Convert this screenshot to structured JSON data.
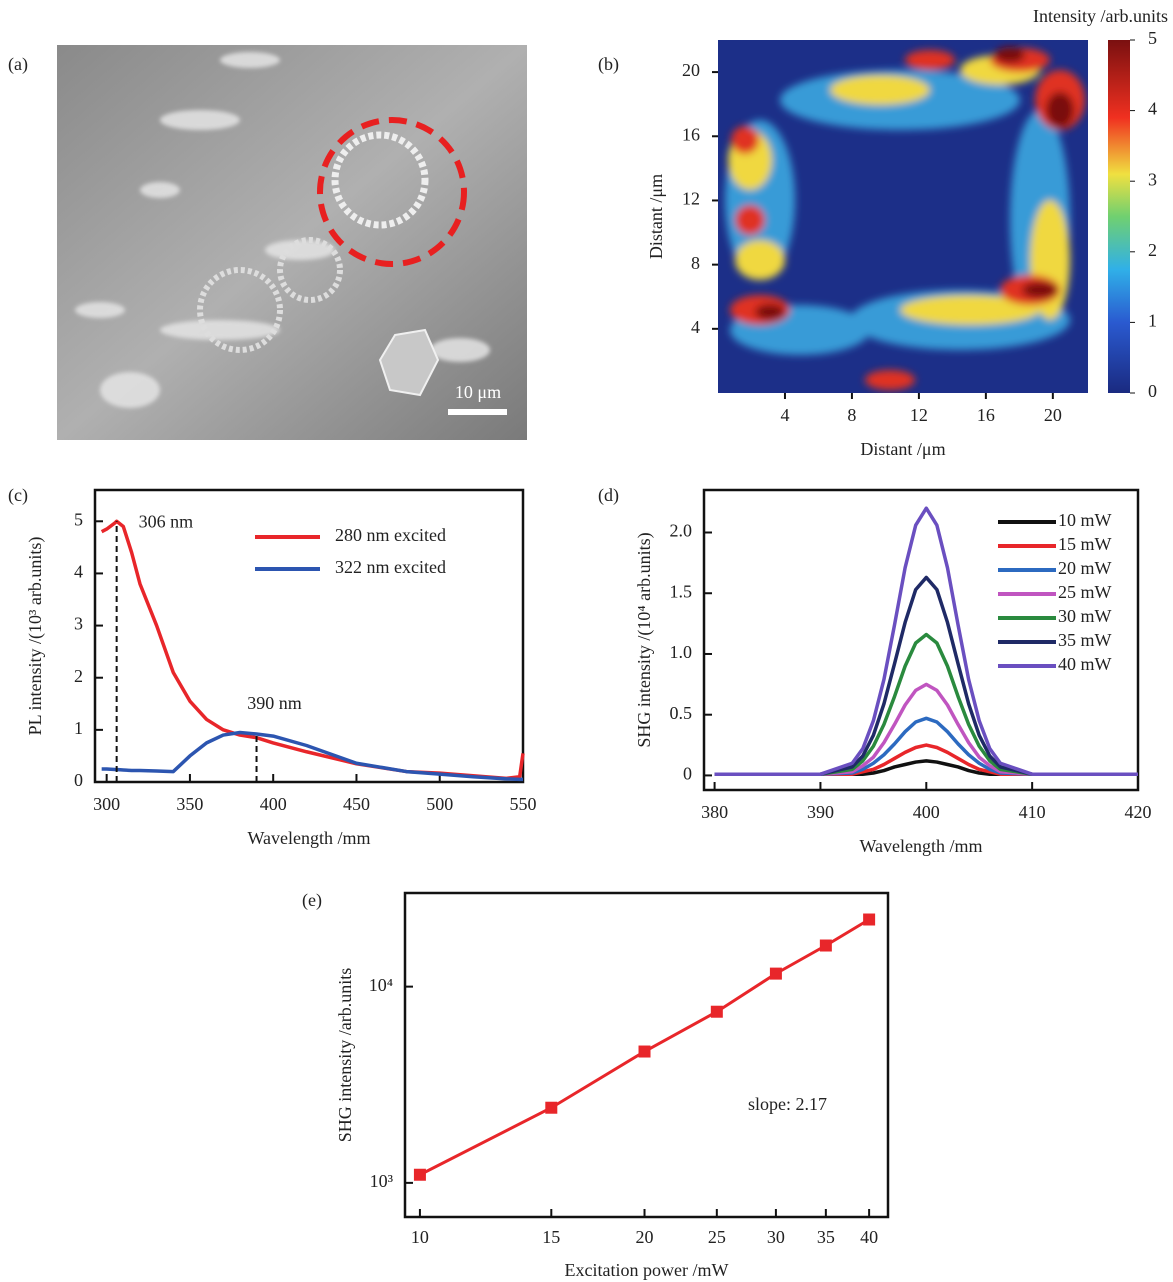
{
  "image_a": {
    "label": "(a)",
    "scale_bar": "10 μm"
  },
  "chart_data": [
    {
      "type": "heatmap",
      "label": "(b)",
      "xlabel": "Distant /μm",
      "ylabel": "Distant /μm",
      "xlim": [
        0,
        22.1
      ],
      "xticks": [
        4,
        8,
        12,
        16,
        20
      ],
      "ylim": [
        0,
        22
      ],
      "yticks": [
        4,
        8,
        12,
        16,
        20
      ],
      "colorbar_label": "Intensity /arb.units",
      "clim": [
        0,
        5
      ],
      "cticks": [
        0,
        1,
        2,
        3,
        4,
        5
      ]
    },
    {
      "type": "line",
      "label": "(c)",
      "xlabel": "Wavelength /mm",
      "ylabel": "PL intensity /(10³ arb.units)",
      "xlim": [
        293,
        550
      ],
      "xticks": [
        300,
        350,
        400,
        450,
        500,
        550
      ],
      "ylim": [
        0,
        5.6
      ],
      "yticks": [
        0,
        1,
        2,
        3,
        4,
        5
      ],
      "legend": "upper right",
      "x": [
        297,
        300,
        305,
        306,
        310,
        315,
        320,
        330,
        340,
        350,
        360,
        370,
        380,
        390,
        400,
        420,
        450,
        480,
        500,
        520,
        540,
        548,
        550
      ],
      "series": [
        {
          "name": "280 nm excited",
          "color": "#e8262a",
          "values": [
            4.8,
            4.85,
            4.97,
            5.0,
            4.9,
            4.4,
            3.8,
            3.0,
            2.1,
            1.55,
            1.2,
            1.0,
            0.9,
            0.85,
            0.75,
            0.58,
            0.35,
            0.2,
            0.17,
            0.12,
            0.07,
            0.1,
            0.55
          ]
        },
        {
          "name": "322 nm excited",
          "color": "#2c55b0",
          "values": [
            0.25,
            0.25,
            0.24,
            0.24,
            0.23,
            0.22,
            0.22,
            0.21,
            0.2,
            0.5,
            0.75,
            0.9,
            0.95,
            0.92,
            0.88,
            0.7,
            0.36,
            0.2,
            0.15,
            0.1,
            0.06,
            0.05,
            0.05
          ]
        }
      ],
      "annotations": [
        {
          "text": "306 nm",
          "x": 306,
          "y": 5
        },
        {
          "text": "390 nm",
          "x": 390,
          "y": 0.9
        }
      ]
    },
    {
      "type": "line",
      "label": "(d)",
      "xlabel": "Wavelength /mm",
      "ylabel": "SHG intensity /(10⁴ arb.units)",
      "xlim": [
        379,
        420
      ],
      "xticks": [
        380,
        390,
        400,
        410,
        420
      ],
      "ylim": [
        -0.12,
        2.35
      ],
      "yticks": [
        0,
        0.5,
        {
          "value": 1,
          "label": "1.0"
        },
        1.5,
        {
          "value": 2,
          "label": "2.0"
        }
      ],
      "legend": "upper right",
      "x": [
        380,
        385,
        390,
        393,
        394,
        395,
        396,
        397,
        398,
        399,
        400,
        401,
        402,
        403,
        404,
        405,
        406,
        407,
        410,
        415,
        420
      ],
      "series": [
        {
          "name": "10 mW",
          "color": "#111111",
          "values": [
            0.01,
            0.01,
            0.01,
            0.01,
            0.01,
            0.02,
            0.04,
            0.07,
            0.09,
            0.11,
            0.12,
            0.11,
            0.09,
            0.07,
            0.04,
            0.02,
            0.01,
            0.01,
            0.01,
            0.01,
            0.01
          ]
        },
        {
          "name": "15 mW",
          "color": "#e8262a",
          "values": [
            0.01,
            0.01,
            0.01,
            0.01,
            0.03,
            0.05,
            0.09,
            0.14,
            0.19,
            0.23,
            0.25,
            0.23,
            0.19,
            0.14,
            0.09,
            0.05,
            0.03,
            0.01,
            0.01,
            0.01,
            0.01
          ]
        },
        {
          "name": "20 mW",
          "color": "#2c6ac0",
          "values": [
            0.01,
            0.01,
            0.01,
            0.02,
            0.05,
            0.1,
            0.17,
            0.26,
            0.36,
            0.44,
            0.47,
            0.44,
            0.36,
            0.26,
            0.17,
            0.1,
            0.05,
            0.02,
            0.01,
            0.01,
            0.01
          ]
        },
        {
          "name": "25 mW",
          "color": "#c055c0",
          "values": [
            0.01,
            0.01,
            0.01,
            0.03,
            0.08,
            0.15,
            0.27,
            0.42,
            0.58,
            0.7,
            0.75,
            0.7,
            0.58,
            0.42,
            0.27,
            0.15,
            0.08,
            0.03,
            0.01,
            0.01,
            0.01
          ]
        },
        {
          "name": "30 mW",
          "color": "#2a8a3e",
          "values": [
            0.01,
            0.01,
            0.01,
            0.05,
            0.12,
            0.24,
            0.42,
            0.65,
            0.9,
            1.09,
            1.16,
            1.09,
            0.9,
            0.65,
            0.42,
            0.24,
            0.12,
            0.05,
            0.01,
            0.01,
            0.01
          ]
        },
        {
          "name": "35 mW",
          "color": "#1f2a66",
          "values": [
            0.01,
            0.01,
            0.01,
            0.07,
            0.16,
            0.33,
            0.59,
            0.92,
            1.26,
            1.53,
            1.63,
            1.53,
            1.26,
            0.92,
            0.59,
            0.33,
            0.16,
            0.07,
            0.01,
            0.01,
            0.01
          ]
        },
        {
          "name": "40 mW",
          "color": "#6a4fc0",
          "values": [
            0.01,
            0.01,
            0.01,
            0.1,
            0.22,
            0.45,
            0.79,
            1.24,
            1.71,
            2.06,
            2.2,
            2.06,
            1.71,
            1.24,
            0.79,
            0.45,
            0.22,
            0.1,
            0.01,
            0.01,
            0.01
          ]
        }
      ]
    },
    {
      "type": "scatter",
      "label": "(e)",
      "xlabel": "Excitation power /mW",
      "ylabel": "SHG intensity /arb.units",
      "xlog": true,
      "ylog": true,
      "xlim": [
        9.55,
        42.4
      ],
      "xticks": [
        10,
        15,
        20,
        25,
        30,
        35,
        40
      ],
      "ylim": [
        670,
        30000
      ],
      "yticks": [
        {
          "value": 1000,
          "label": "10³"
        },
        {
          "value": 10000,
          "label": "10⁴"
        }
      ],
      "color": "#e8262a",
      "x": [
        10,
        15,
        20,
        25,
        30,
        35,
        40
      ],
      "values": [
        1100,
        2415,
        4670,
        7450,
        11650,
        16200,
        21980
      ],
      "annotation": "slope: 2.17"
    }
  ]
}
